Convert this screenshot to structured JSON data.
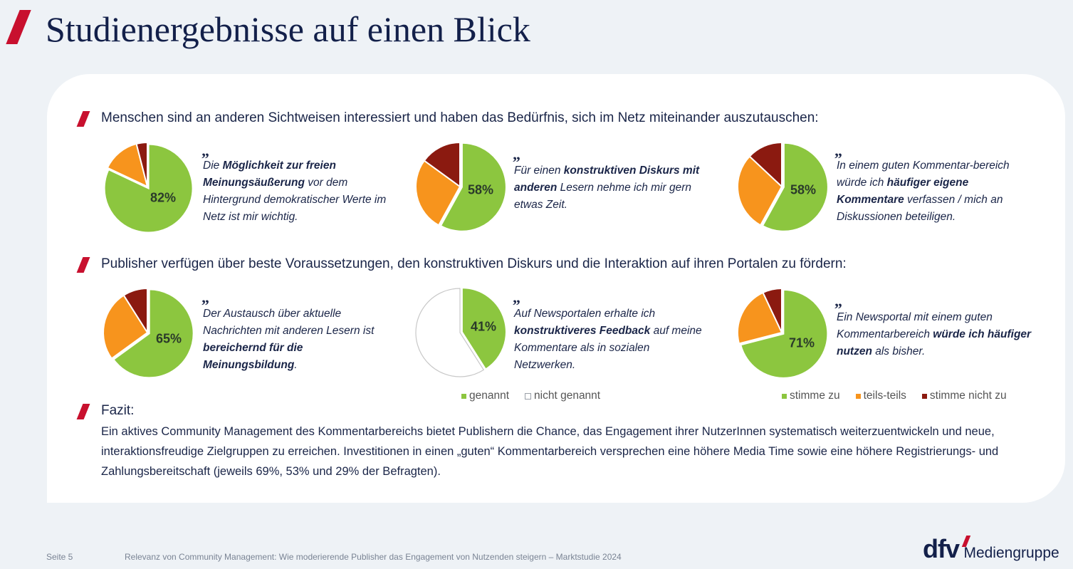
{
  "title": "Studienergebnisse auf einen Blick",
  "sections": [
    {
      "heading": "Menschen sind an anderen Sichtweisen interessiert und haben das Bedürfnis, sich im Netz miteinander auszutauschen:"
    },
    {
      "heading": "Publisher verfügen über beste Voraussetzungen, den konstruktiven Diskurs und die Interaktion auf ihren Portalen zu fördern:"
    },
    {
      "heading": "Fazit:"
    }
  ],
  "quote_mark": "„",
  "quotes": [
    [
      {
        "t": "Die "
      },
      {
        "t": "Möglichkeit zur freien Meinungsäußerung",
        "b": true
      },
      {
        "t": " vor dem Hintergrund demokratischer Werte im Netz ist mir wichtig."
      }
    ],
    [
      {
        "t": "Für einen "
      },
      {
        "t": "konstruktiven Diskurs mit anderen",
        "b": true
      },
      {
        "t": " Lesern nehme ich mir gern etwas Zeit."
      }
    ],
    [
      {
        "t": "In einem guten Kommentar-bereich würde ich "
      },
      {
        "t": "häufiger eigene Kommentare",
        "b": true
      },
      {
        "t": " verfassen / mich an Diskussionen beteiligen."
      }
    ],
    [
      {
        "t": "Der Austausch über aktuelle Nachrichten mit anderen Lesern ist "
      },
      {
        "t": "bereichernd für die Meinungsbildung",
        "b": true
      },
      {
        "t": "."
      }
    ],
    [
      {
        "t": "Auf Newsportalen erhalte ich "
      },
      {
        "t": "konstruktiveres Feedback",
        "b": true
      },
      {
        "t": " auf meine Kommentare als in sozialen Netzwerken."
      }
    ],
    [
      {
        "t": "Ein Newsportal mit einem guten Kommentarbereich "
      },
      {
        "t": "würde ich häufiger nutzen",
        "b": true
      },
      {
        "t": " als bisher."
      }
    ]
  ],
  "colors": {
    "stimme_zu": "#8cc63f",
    "teils_teils": "#f7941d",
    "stimme_nicht_zu": "#8b1a10",
    "nicht_genannt": "#ffffff",
    "accent": "#c8102e"
  },
  "chart_data": [
    {
      "type": "pie",
      "label": "82%",
      "slices": [
        {
          "category": "stimme zu",
          "value": 82
        },
        {
          "category": "teils-teils",
          "value": 14
        },
        {
          "category": "stimme nicht zu",
          "value": 4
        }
      ]
    },
    {
      "type": "pie",
      "label": "58%",
      "slices": [
        {
          "category": "stimme zu",
          "value": 58
        },
        {
          "category": "teils-teils",
          "value": 27
        },
        {
          "category": "stimme nicht zu",
          "value": 15
        }
      ]
    },
    {
      "type": "pie",
      "label": "58%",
      "slices": [
        {
          "category": "stimme zu",
          "value": 58
        },
        {
          "category": "teils-teils",
          "value": 29
        },
        {
          "category": "stimme nicht zu",
          "value": 13
        }
      ]
    },
    {
      "type": "pie",
      "label": "65%",
      "slices": [
        {
          "category": "stimme zu",
          "value": 65
        },
        {
          "category": "teils-teils",
          "value": 26
        },
        {
          "category": "stimme nicht zu",
          "value": 9
        }
      ]
    },
    {
      "type": "pie",
      "label": "41%",
      "slices": [
        {
          "category": "genannt",
          "value": 41
        },
        {
          "category": "nicht genannt",
          "value": 59
        }
      ]
    },
    {
      "type": "pie",
      "label": "71%",
      "slices": [
        {
          "category": "stimme zu",
          "value": 71
        },
        {
          "category": "teils-teils",
          "value": 22
        },
        {
          "category": "stimme nicht zu",
          "value": 7
        }
      ]
    }
  ],
  "legends": {
    "left": [
      {
        "label": "genannt",
        "color": "#8cc63f"
      },
      {
        "label": "nicht genannt",
        "color": "#ffffff"
      }
    ],
    "right": [
      {
        "label": "stimme zu",
        "color": "#8cc63f"
      },
      {
        "label": "teils-teils",
        "color": "#f7941d"
      },
      {
        "label": "stimme nicht zu",
        "color": "#8b1a10"
      }
    ]
  },
  "fazit": "Ein aktives Community Management des Kommentarbereichs bietet Publishern die Chance, das Engagement ihrer NutzerInnen systematisch weiterzuentwickeln und neue, interaktionsfreudige Zielgruppen zu erreichen. Investitionen in einen „guten“ Kommentarbereich versprechen eine höhere Media Time sowie eine höhere Registrierungs- und Zahlungsbereitschaft (jeweils 69%, 53% und 29% der Befragten).",
  "footer": {
    "page": "Seite 5",
    "text": "Relevanz von Community Management: Wie moderierende Publisher das Engagement von Nutzenden steigern – Marktstudie 2024"
  },
  "logo": {
    "mark": "dfv",
    "text": "Mediengruppe"
  }
}
